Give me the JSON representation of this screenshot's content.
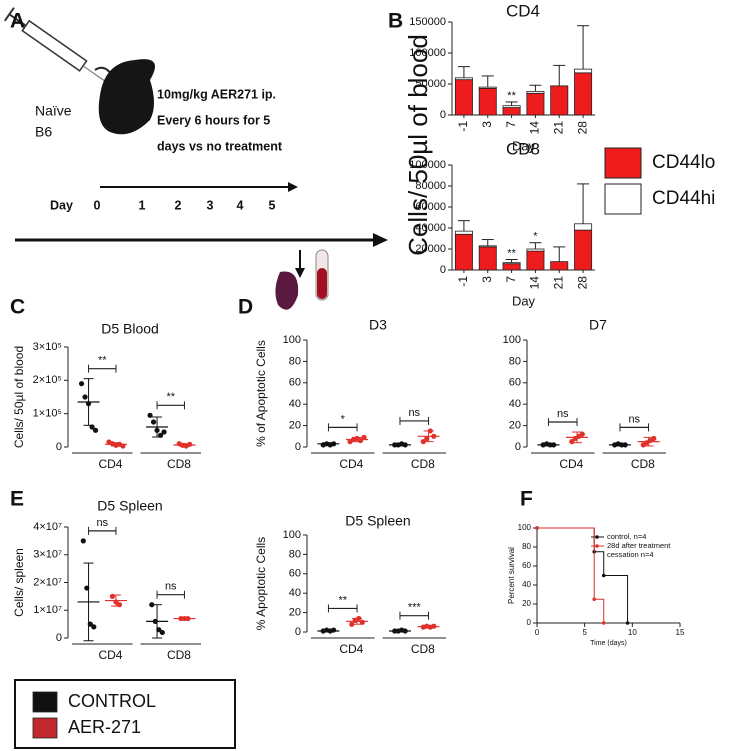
{
  "panel_labels": [
    "A",
    "B",
    "C",
    "D",
    "E",
    "F"
  ],
  "diagram": {
    "mouse_label": [
      "Naïve",
      "B6"
    ],
    "treatment": [
      "10mg/kg AER271 ip.",
      "Every 6 hours for 5",
      "days vs no treatment"
    ],
    "timeline_label": "Day",
    "days": [
      0,
      1,
      2,
      3,
      4,
      5
    ]
  },
  "cells_ylabel": "Cells/ 50µl of blood",
  "chart_data": [
    {
      "type": "bar",
      "stacked": true,
      "title": "CD4",
      "xlabel": "Day",
      "categories": [
        "-1",
        "3",
        "7",
        "14",
        "21",
        "28"
      ],
      "series": [
        {
          "name": "CD44lo",
          "color": "#ee1c1c",
          "values": [
            57000,
            43000,
            12000,
            35000,
            47000,
            68000
          ]
        },
        {
          "name": "CD44hi",
          "color": "#ffffff",
          "values": [
            3000,
            2000,
            3000,
            3000,
            0,
            6000
          ]
        }
      ],
      "errors": [
        18000,
        18000,
        6000,
        10000,
        33000,
        70000
      ],
      "annotations": [
        null,
        null,
        "**",
        null,
        null,
        null
      ],
      "ylim": [
        0,
        150000
      ],
      "yticks": [
        0,
        50000,
        100000,
        150000
      ]
    },
    {
      "type": "bar",
      "stacked": true,
      "title": "CD8",
      "xlabel": "Day",
      "categories": [
        "-1",
        "3",
        "7",
        "14",
        "21",
        "28"
      ],
      "series": [
        {
          "color": "#ee1c1c",
          "values": [
            34000,
            22000,
            6000,
            18000,
            8000,
            38000
          ]
        },
        {
          "color": "#ffffff",
          "values": [
            3000,
            1000,
            1000,
            2000,
            0,
            6000
          ]
        }
      ],
      "errors": [
        10000,
        6000,
        3000,
        6000,
        14000,
        38000
      ],
      "annotations": [
        null,
        null,
        "**",
        "*",
        null,
        null
      ],
      "ylim": [
        0,
        100000
      ],
      "yticks": [
        0,
        20000,
        40000,
        60000,
        80000,
        100000
      ]
    },
    {
      "type": "strip",
      "title": "D5 Blood",
      "ylabel": "Cells/ 50µl of blood",
      "categories": [
        "CD4",
        "CD8"
      ],
      "brackets": [
        "**",
        "**"
      ],
      "series": [
        {
          "color": "#111111",
          "points": [
            [
              190000,
              150000,
              130000,
              60000,
              50000
            ],
            [
              95000,
              75000,
              50000,
              35000,
              45000
            ]
          ],
          "means": [
            135000,
            60000
          ],
          "sds": [
            70000,
            30000
          ]
        },
        {
          "color": "#e0312b",
          "points": [
            [
              15000,
              10000,
              5000,
              8000,
              3000
            ],
            [
              10000,
              5000,
              3000,
              8000
            ]
          ],
          "means": [
            8000,
            6000
          ],
          "sds": [
            5000,
            4000
          ]
        }
      ],
      "ylim": [
        0,
        300000
      ],
      "yticks": [
        0,
        {
          "value": 100000,
          "label": "1×10⁵"
        },
        {
          "value": 200000,
          "label": "2×10⁵"
        },
        {
          "value": 300000,
          "label": "3×10⁵"
        }
      ]
    },
    {
      "type": "strip",
      "title": "D3",
      "ylabel": "% of Apoptotic Cells",
      "categories": [
        "CD4",
        "CD8"
      ],
      "brackets": [
        "*",
        "ns"
      ],
      "series": [
        {
          "color": "#111111",
          "points": [
            [
              2,
              3,
              2,
              3
            ],
            [
              2,
              2,
              3,
              2
            ]
          ],
          "means": [
            3,
            2
          ],
          "sds": [
            1,
            1
          ]
        },
        {
          "color": "#e0312b",
          "points": [
            [
              5,
              7,
              8,
              6,
              9
            ],
            [
              5,
              8,
              15,
              10
            ]
          ],
          "means": [
            7,
            10
          ],
          "sds": [
            2,
            5
          ]
        }
      ],
      "ylim": [
        0,
        100
      ],
      "yticks": [
        0,
        20,
        40,
        60,
        80,
        100
      ]
    },
    {
      "type": "strip",
      "title": "D7",
      "categories": [
        "CD4",
        "CD8"
      ],
      "brackets": [
        "ns",
        "ns"
      ],
      "series": [
        {
          "color": "#111111",
          "points": [
            [
              2,
              3,
              2,
              2
            ],
            [
              2,
              3,
              2,
              2
            ]
          ],
          "means": [
            2,
            2
          ],
          "sds": [
            1,
            1
          ]
        },
        {
          "color": "#e0312b",
          "points": [
            [
              5,
              8,
              10,
              12
            ],
            [
              2,
              4,
              6,
              8
            ]
          ],
          "means": [
            9,
            5
          ],
          "sds": [
            5,
            4
          ]
        }
      ],
      "ylim": [
        0,
        100
      ],
      "yticks": [
        0,
        20,
        40,
        60,
        80,
        100
      ]
    },
    {
      "type": "strip",
      "title": "D5 Spleen",
      "ylabel": "%  Apoptotic Cells",
      "categories": [
        "CD4",
        "CD8"
      ],
      "brackets": [
        "**",
        "***"
      ],
      "series": [
        {
          "color": "#111111",
          "points": [
            [
              1,
              2,
              1,
              2
            ],
            [
              1,
              1,
              2,
              1
            ]
          ],
          "means": [
            1,
            1
          ],
          "sds": [
            1,
            1
          ]
        },
        {
          "color": "#e0312b",
          "points": [
            [
              8,
              12,
              14,
              10
            ],
            [
              5,
              6,
              5,
              6
            ]
          ],
          "means": [
            11,
            5.5
          ],
          "sds": [
            3,
            1
          ]
        }
      ],
      "ylim": [
        0,
        100
      ],
      "yticks": [
        0,
        20,
        40,
        60,
        80,
        100
      ]
    },
    {
      "type": "strip",
      "title": "D5 Spleen",
      "ylabel": "Cells/ spleen",
      "categories": [
        "CD4",
        "CD8"
      ],
      "brackets": [
        "ns",
        "ns"
      ],
      "series": [
        {
          "color": "#111111",
          "points": [
            [
              35000000,
              18000000,
              5000000,
              4000000
            ],
            [
              12000000,
              6000000,
              3000000,
              2000000
            ]
          ],
          "means": [
            13000000,
            6000000
          ],
          "sds": [
            14000000,
            6000000
          ]
        },
        {
          "color": "#e0312b",
          "points": [
            [
              15000000,
              13000000,
              12000000
            ],
            [
              7000000,
              7000000,
              7000000
            ]
          ],
          "means": [
            13500000,
            7000000
          ],
          "sds": [
            2000000,
            300000
          ]
        }
      ],
      "ylim": [
        0,
        40000000
      ],
      "yticks": [
        0,
        {
          "value": 10000000,
          "label": "1×10⁷"
        },
        {
          "value": 20000000,
          "label": "2×10⁷"
        },
        {
          "value": 30000000,
          "label": "3×10⁷"
        },
        {
          "value": 40000000,
          "label": "4×10⁷"
        }
      ]
    },
    {
      "type": "line",
      "step": true,
      "xlabel": "Time (days)",
      "ylabel": "Percent survival",
      "series": [
        {
          "name": "control, n=4",
          "color": "#111111",
          "x": [
            0,
            6,
            7,
            9.5
          ],
          "values": [
            100,
            75,
            50,
            0
          ]
        },
        {
          "name": "28d after treatment cessation n=4",
          "color": "#e0312b",
          "x": [
            0,
            6,
            7
          ],
          "values": [
            100,
            25,
            0
          ]
        }
      ],
      "xlim": [
        0,
        15
      ],
      "xticks": [
        0,
        5,
        10,
        15
      ],
      "ylim": [
        0,
        100
      ],
      "yticks": [
        0,
        20,
        40,
        60,
        80,
        100
      ]
    }
  ],
  "legend": [
    {
      "name": "CONTROL",
      "color": "#111111"
    },
    {
      "name": "AER-271",
      "color": "#c0282d"
    }
  ]
}
